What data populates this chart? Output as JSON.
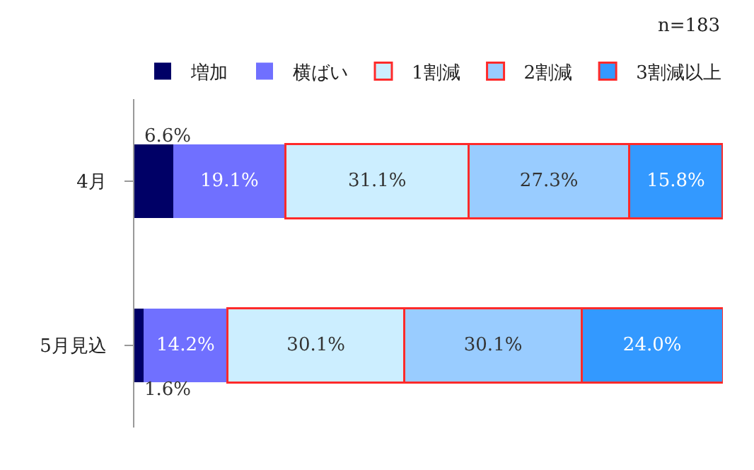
{
  "chart_data": {
    "type": "bar",
    "orientation": "horizontal",
    "stacked": true,
    "legend": "top left",
    "categories": [
      "4月",
      "5月見込"
    ],
    "series": [
      {
        "name": "増加",
        "color": "#000066",
        "values": [
          6.6,
          1.6
        ],
        "value_labels": [
          "6.6%",
          "1.6%"
        ]
      },
      {
        "name": "横ばい",
        "color": "#7070ff",
        "values": [
          19.1,
          14.2
        ],
        "value_labels": [
          "19.1%",
          "14.2%"
        ]
      },
      {
        "name": "1割減",
        "color": "#cceeff",
        "values": [
          31.1,
          30.1
        ],
        "value_labels": [
          "31.1%",
          "30.1%"
        ]
      },
      {
        "name": "2割減",
        "color": "#99ccff",
        "values": [
          27.3,
          30.1
        ],
        "value_labels": [
          "27.3%",
          "30.1%"
        ]
      },
      {
        "name": "3割減以上",
        "color": "#3399ff",
        "values": [
          15.8,
          24.0
        ],
        "value_labels": [
          "15.8%",
          "24.0%"
        ]
      }
    ],
    "annotations": [
      "n=183"
    ]
  }
}
